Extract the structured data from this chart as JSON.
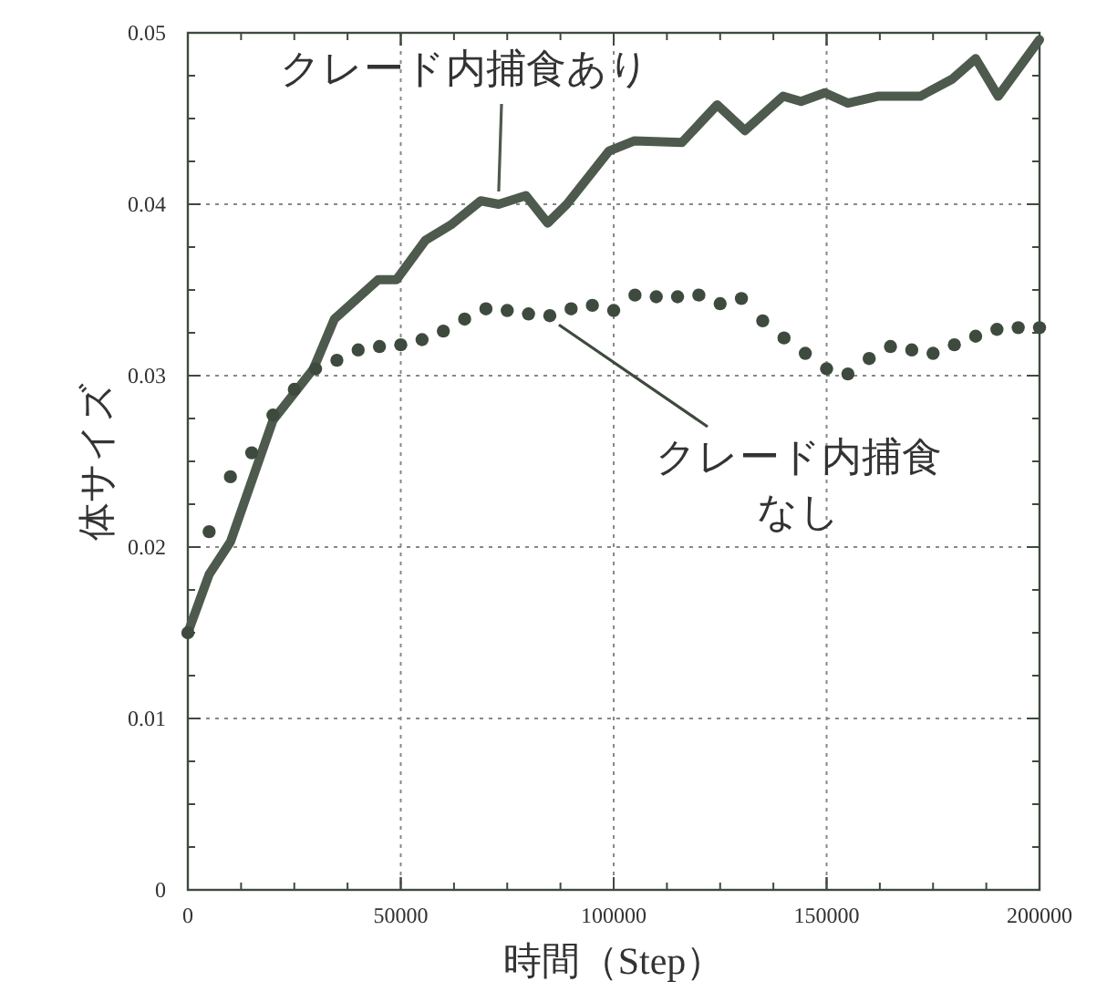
{
  "chart_data": {
    "type": "line",
    "xlabel": "時間（Step）",
    "ylabel": "体サイズ",
    "xlim": [
      0,
      200000
    ],
    "ylim": [
      0,
      0.05
    ],
    "xticks": [
      0,
      50000,
      100000,
      150000,
      200000
    ],
    "yticks": [
      0,
      0.01,
      0.02,
      0.03,
      0.04,
      0.05
    ],
    "grid": true,
    "series": [
      {
        "name": "クレード内捕食あり",
        "type": "line",
        "color": "#4d5a4d",
        "x": [
          0,
          5000,
          10000,
          20000,
          29500,
          34400,
          44700,
          49000,
          55800,
          61800,
          68800,
          73000,
          79400,
          84500,
          89000,
          98900,
          104900,
          116000,
          124300,
          130800,
          139800,
          144000,
          149600,
          155000,
          162000,
          172000,
          179500,
          185000,
          190300,
          200000
        ],
        "values": [
          0.015,
          0.0184,
          0.0203,
          0.0274,
          0.0304,
          0.0333,
          0.0356,
          0.0356,
          0.0379,
          0.0388,
          0.0402,
          0.04,
          0.0405,
          0.0389,
          0.04,
          0.0431,
          0.0437,
          0.0436,
          0.0458,
          0.0443,
          0.0463,
          0.046,
          0.0465,
          0.0459,
          0.0463,
          0.0463,
          0.0473,
          0.0485,
          0.0463,
          0.0496
        ]
      },
      {
        "name": "クレード内捕食なし",
        "type": "scatter",
        "marker": "circle",
        "color": "#3f4a3f",
        "x": [
          0,
          5000,
          10000,
          15000,
          20000,
          25000,
          30000,
          35000,
          40000,
          45000,
          50000,
          55000,
          60000,
          65000,
          70000,
          75000,
          80000,
          85000,
          90000,
          95000,
          100000,
          105000,
          110000,
          115000,
          120000,
          125000,
          130000,
          135000,
          140000,
          145000,
          150000,
          155000,
          160000,
          165000,
          170000,
          175000,
          180000,
          185000,
          190000,
          195000,
          200000
        ],
        "values": [
          0.015,
          0.0209,
          0.0241,
          0.0255,
          0.0277,
          0.0292,
          0.0304,
          0.0309,
          0.0315,
          0.0317,
          0.0318,
          0.0321,
          0.0326,
          0.0333,
          0.0339,
          0.0338,
          0.0336,
          0.0335,
          0.0339,
          0.0341,
          0.0338,
          0.0347,
          0.0346,
          0.0346,
          0.0347,
          0.0342,
          0.0345,
          0.0332,
          0.0322,
          0.0313,
          0.0304,
          0.0301,
          0.031,
          0.0317,
          0.0315,
          0.0313,
          0.0318,
          0.0323,
          0.0327,
          0.0328,
          0.0328
        ]
      }
    ]
  }
}
